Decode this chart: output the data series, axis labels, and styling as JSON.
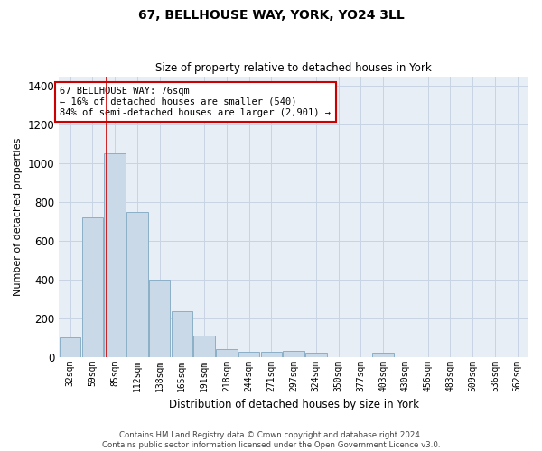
{
  "title": "67, BELLHOUSE WAY, YORK, YO24 3LL",
  "subtitle": "Size of property relative to detached houses in York",
  "xlabel": "Distribution of detached houses by size in York",
  "ylabel": "Number of detached properties",
  "footer_line1": "Contains HM Land Registry data © Crown copyright and database right 2024.",
  "footer_line2": "Contains public sector information licensed under the Open Government Licence v3.0.",
  "categories": [
    "32sqm",
    "59sqm",
    "85sqm",
    "112sqm",
    "138sqm",
    "165sqm",
    "191sqm",
    "218sqm",
    "244sqm",
    "271sqm",
    "297sqm",
    "324sqm",
    "350sqm",
    "377sqm",
    "403sqm",
    "430sqm",
    "456sqm",
    "483sqm",
    "509sqm",
    "536sqm",
    "562sqm"
  ],
  "bar_values": [
    100,
    720,
    1050,
    750,
    400,
    235,
    110,
    40,
    25,
    25,
    30,
    20,
    0,
    0,
    20,
    0,
    0,
    0,
    0,
    0,
    0
  ],
  "bar_color": "#c9d9e8",
  "bar_edge_color": "#8bafc8",
  "ylim": [
    0,
    1450
  ],
  "yticks": [
    0,
    200,
    400,
    600,
    800,
    1000,
    1200,
    1400
  ],
  "grid_color": "#c8d4e4",
  "bg_color": "#e8eef6",
  "annotation_text": "67 BELLHOUSE WAY: 76sqm\n← 16% of detached houses are smaller (540)\n84% of semi-detached houses are larger (2,901) →",
  "annotation_box_color": "#cc0000",
  "property_bin_index": 1,
  "figsize": [
    6.0,
    5.0
  ],
  "dpi": 100
}
